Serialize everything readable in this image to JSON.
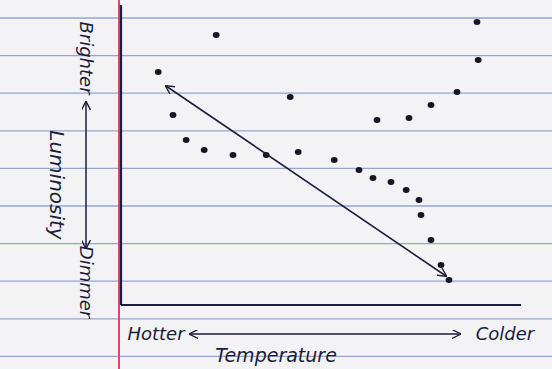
{
  "chart_data": {
    "type": "scatter",
    "x_label": "Temperature",
    "y_label": "Luminosity",
    "x_ends": [
      "Hotter",
      "Colder"
    ],
    "y_ends": [
      "Brighter",
      "Dimmer"
    ],
    "x": [
      9.3,
      23.8,
      13,
      16.3,
      20.8,
      28,
      36.3,
      44.3,
      42.3,
      53.3,
      59.5,
      63,
      67.5,
      71.3,
      74.5,
      75,
      77.5,
      80,
      82,
      64,
      72,
      77.5,
      84,
      89.3,
      89
    ],
    "y": [
      77.7,
      90,
      63.3,
      55,
      51.7,
      50,
      50,
      51,
      69.3,
      48.3,
      45,
      42.3,
      41,
      38.3,
      35,
      30,
      21.7,
      13.3,
      8.3,
      61.7,
      62.3,
      66.7,
      71,
      81.7,
      94.3
    ],
    "xlim": [
      0,
      100
    ],
    "ylim": [
      0,
      100
    ],
    "tick_labels": false,
    "color": "#151525",
    "marker": "circle"
  }
}
